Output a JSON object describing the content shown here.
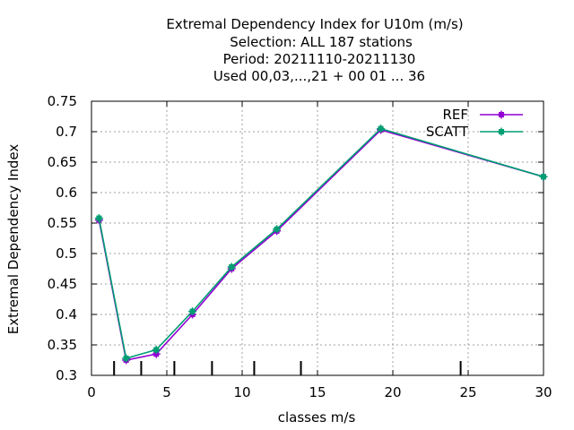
{
  "chart_data": {
    "type": "line",
    "title_lines": [
      "Extremal Dependency Index  for U10m (m/s)",
      "Selection: ALL    187 stations",
      "Period: 20211110-20211130",
      "Used  00,03,...,21  + 00 01 ... 36"
    ],
    "xlabel": "classes m/s",
    "ylabel": "Extremal Dependency Index",
    "xlim": [
      0,
      30
    ],
    "ylim": [
      0.3,
      0.75
    ],
    "x_ticks": [
      0,
      5,
      10,
      15,
      20,
      25,
      30
    ],
    "y_ticks": [
      0.3,
      0.35,
      0.4,
      0.45,
      0.5,
      0.55,
      0.6,
      0.65,
      0.7,
      0.75
    ],
    "x_tick_labels": [
      "0",
      "5",
      "10",
      "15",
      "20",
      "25",
      "30"
    ],
    "y_tick_labels": [
      "0.3",
      "0.35",
      "0.4",
      "0.45",
      "0.5",
      "0.55",
      "0.6",
      "0.65",
      "0.7",
      "0.75"
    ],
    "grid": true,
    "legend_position": "top-right",
    "class_boundaries": [
      1.5,
      3.3,
      5.5,
      8.0,
      10.8,
      13.9,
      24.5
    ],
    "series": [
      {
        "name": "REF",
        "color": "#9400d3",
        "x": [
          0.5,
          2.3,
          4.3,
          6.7,
          9.3,
          12.3,
          19.2,
          30
        ],
        "y": [
          0.555,
          0.325,
          0.335,
          0.4,
          0.475,
          0.537,
          0.703,
          0.626
        ]
      },
      {
        "name": "SCATT",
        "color": "#009e73",
        "x": [
          0.5,
          2.3,
          4.3,
          6.7,
          9.3,
          12.3,
          19.2,
          30
        ],
        "y": [
          0.558,
          0.328,
          0.342,
          0.405,
          0.478,
          0.54,
          0.705,
          0.626
        ]
      }
    ]
  }
}
